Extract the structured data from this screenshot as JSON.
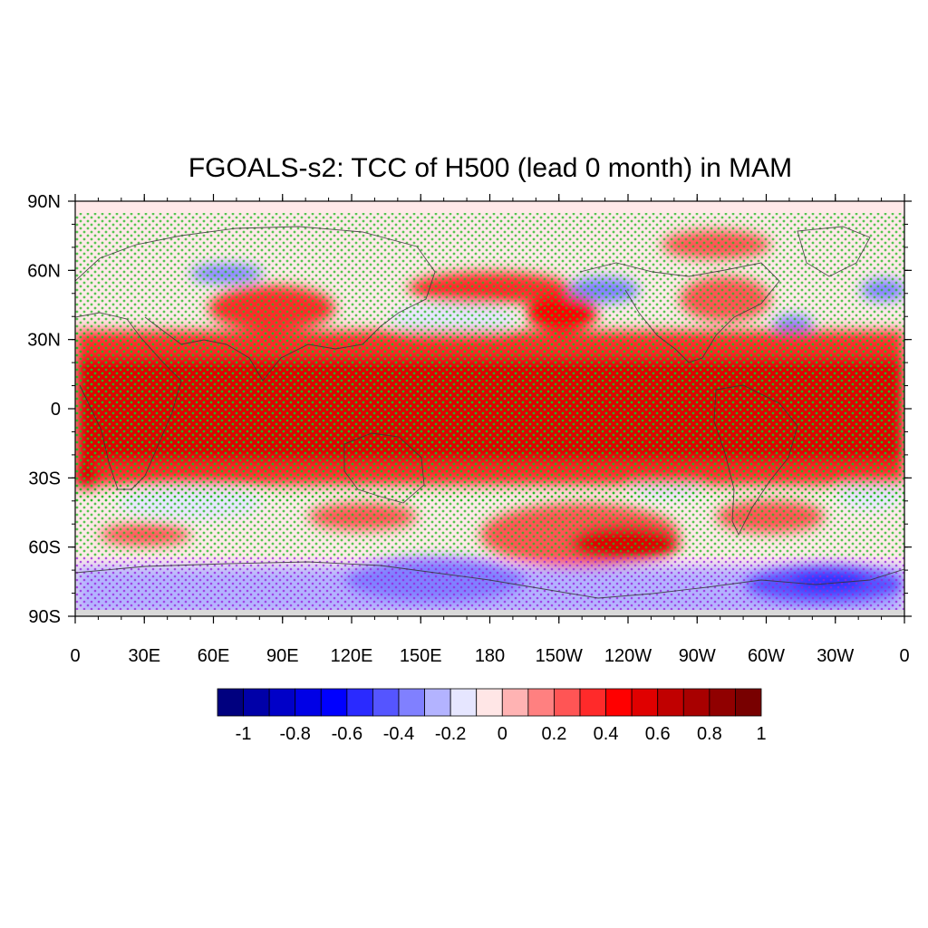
{
  "title": "FGOALS-s2: TCC of H500 (lead 0 month) in MAM",
  "map": {
    "projection": "cylindrical equidistant",
    "lon_range": [
      0,
      360
    ],
    "lat_range": [
      -90,
      90
    ],
    "lat_tick_labels": [
      "90N",
      "60N",
      "30N",
      "0",
      "30S",
      "60S",
      "90S"
    ],
    "lon_tick_labels": [
      "0",
      "30E",
      "60E",
      "90E",
      "120E",
      "150E",
      "180",
      "150W",
      "120W",
      "90W",
      "60W",
      "30W",
      "0"
    ],
    "stipple_color": "#22bb22",
    "coastline_color": "#333333"
  },
  "colorbar": {
    "tick_labels": [
      "-1",
      "-0.8",
      "-0.6",
      "-0.4",
      "-0.2",
      "0",
      "0.2",
      "0.4",
      "0.6",
      "0.8",
      "1"
    ],
    "colors": [
      "#00007f",
      "#0000a8",
      "#0000c8",
      "#0000e6",
      "#0000ff",
      "#2a2aff",
      "#5555ff",
      "#8080ff",
      "#b3b3ff",
      "#e6e6ff",
      "#ffe6e6",
      "#ffb3b3",
      "#ff8080",
      "#ff5555",
      "#ff2a2a",
      "#ff0000",
      "#e00000",
      "#c00000",
      "#a80000",
      "#900000",
      "#780000"
    ]
  }
}
